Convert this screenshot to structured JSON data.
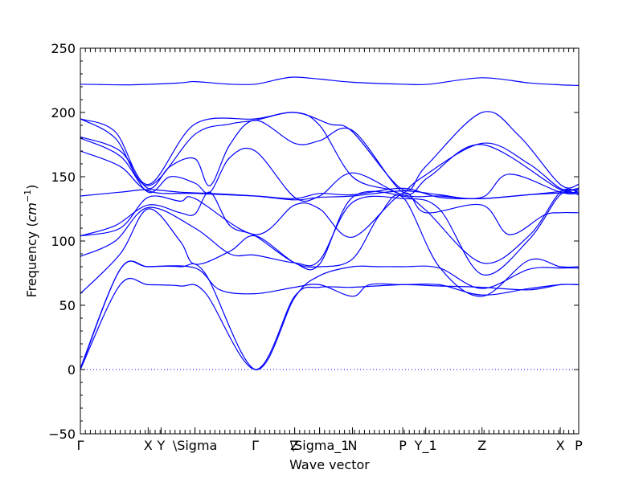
{
  "chart_data": {
    "type": "line",
    "xlabel": "Wave vector",
    "ylabel_text": "Frequency (",
    "ylabel_unit": "cm",
    "ylabel_exp": "−1",
    "ylabel_close": ")",
    "ylim": [
      -50,
      250
    ],
    "yticks": [
      -50,
      0,
      50,
      100,
      150,
      200,
      250
    ],
    "xlim": [
      0,
      100
    ],
    "grid": false,
    "zero_line": {
      "y": 0,
      "style": "dotted",
      "color": "#0000ff"
    },
    "line_color": "#0000ff",
    "kpoints": [
      {
        "label": "Γ",
        "x": 0
      },
      {
        "label": "X",
        "x": 13.6
      },
      {
        "label": "Y",
        "x": 16.2
      },
      {
        "label": "\\Sigma",
        "x": 23.0
      },
      {
        "label": "Γ",
        "x": 35.1
      },
      {
        "label": "Z",
        "x": 43.0
      },
      {
        "label": "\\Sigma_1",
        "x": 48.0
      },
      {
        "label": "N",
        "x": 54.6
      },
      {
        "label": "P",
        "x": 64.7
      },
      {
        "label": "Y_1",
        "x": 69.3
      },
      {
        "label": "Z",
        "x": 80.6
      },
      {
        "label": "X",
        "x": 96.3
      },
      {
        "label": "P",
        "x": 100
      }
    ],
    "series": [
      {
        "values": [
          [
            0,
            222
          ],
          [
            10,
            221.5
          ],
          [
            20,
            223
          ],
          [
            23,
            224
          ],
          [
            30,
            222
          ],
          [
            35.1,
            222
          ],
          [
            40,
            226
          ],
          [
            43,
            227.5
          ],
          [
            48,
            226
          ],
          [
            54.6,
            223.5
          ],
          [
            64.7,
            222
          ],
          [
            70,
            222
          ],
          [
            80.6,
            227
          ],
          [
            90,
            223
          ],
          [
            96.3,
            221.5
          ],
          [
            100,
            221
          ]
        ]
      },
      {
        "values": [
          [
            0,
            195
          ],
          [
            7,
            185
          ],
          [
            13.6,
            144
          ],
          [
            23,
            191
          ],
          [
            35.1,
            195
          ],
          [
            43,
            200
          ],
          [
            50,
            191
          ],
          [
            54.6,
            185
          ],
          [
            64.7,
            140
          ],
          [
            69.3,
            158
          ],
          [
            80.6,
            200
          ],
          [
            88,
            182
          ],
          [
            96.3,
            144
          ],
          [
            100,
            144
          ]
        ]
      },
      {
        "values": [
          [
            0,
            195
          ],
          [
            7,
            180
          ],
          [
            13.6,
            143
          ],
          [
            23,
            183
          ],
          [
            30,
            191
          ],
          [
            35.1,
            194
          ],
          [
            43,
            200
          ],
          [
            48,
            190
          ],
          [
            54.6,
            150
          ],
          [
            62,
            140
          ],
          [
            64.7,
            137
          ],
          [
            68,
            148
          ],
          [
            80.6,
            176
          ],
          [
            90,
            160
          ],
          [
            96.3,
            141
          ],
          [
            100,
            141
          ]
        ]
      },
      {
        "values": [
          [
            0,
            181
          ],
          [
            8,
            170
          ],
          [
            13.6,
            141
          ],
          [
            18,
            158
          ],
          [
            23,
            164
          ],
          [
            26,
            143
          ],
          [
            30,
            175
          ],
          [
            35.1,
            194
          ],
          [
            43,
            176
          ],
          [
            48,
            178
          ],
          [
            54.6,
            186
          ],
          [
            64.7,
            138
          ],
          [
            70,
            150
          ],
          [
            80.6,
            175
          ],
          [
            96.3,
            140
          ],
          [
            100,
            140
          ]
        ]
      },
      {
        "values": [
          [
            0,
            180
          ],
          [
            8,
            166
          ],
          [
            13.6,
            138
          ],
          [
            18,
            150
          ],
          [
            23,
            145
          ],
          [
            26,
            138
          ],
          [
            30,
            165
          ],
          [
            35.1,
            170
          ],
          [
            43,
            134
          ],
          [
            48,
            135
          ],
          [
            54.6,
            153
          ],
          [
            64.7,
            136
          ],
          [
            72,
            135
          ],
          [
            80.6,
            134
          ],
          [
            86,
            152
          ],
          [
            96.3,
            138
          ],
          [
            100,
            137
          ]
        ]
      },
      {
        "values": [
          [
            0,
            170
          ],
          [
            8,
            158
          ],
          [
            13.6,
            139
          ],
          [
            23,
            137
          ],
          [
            35.1,
            135
          ],
          [
            43,
            133
          ],
          [
            48,
            137
          ],
          [
            54.6,
            136
          ],
          [
            64.7,
            141
          ],
          [
            72,
            134
          ],
          [
            80.6,
            133
          ],
          [
            90,
            136
          ],
          [
            100,
            138
          ]
        ]
      },
      {
        "values": [
          [
            0,
            135
          ],
          [
            8,
            138
          ],
          [
            13.6,
            140
          ],
          [
            20,
            138
          ],
          [
            26,
            137
          ],
          [
            35.1,
            135
          ],
          [
            43,
            132
          ],
          [
            48,
            134
          ],
          [
            54.6,
            135
          ],
          [
            64.7,
            139
          ],
          [
            72,
            136
          ],
          [
            80.6,
            133
          ],
          [
            100,
            140
          ]
        ]
      },
      {
        "values": [
          [
            0,
            104
          ],
          [
            8,
            110
          ],
          [
            13.6,
            134
          ],
          [
            20,
            131
          ],
          [
            23,
            133
          ],
          [
            35.1,
            105
          ],
          [
            43,
            128
          ],
          [
            48,
            125
          ],
          [
            54.6,
            103
          ],
          [
            64.7,
            137
          ],
          [
            69.3,
            122
          ],
          [
            80.6,
            128
          ],
          [
            86,
            105
          ],
          [
            93,
            120
          ],
          [
            96.3,
            122
          ],
          [
            100,
            122
          ]
        ]
      },
      {
        "values": [
          [
            0,
            104
          ],
          [
            7,
            112
          ],
          [
            13.6,
            128
          ],
          [
            20,
            122
          ],
          [
            23,
            121
          ],
          [
            26,
            138
          ],
          [
            30,
            112
          ],
          [
            35.1,
            104
          ],
          [
            43,
            83
          ],
          [
            48,
            82
          ],
          [
            54.6,
            134
          ],
          [
            64.7,
            135
          ],
          [
            69.3,
            124
          ],
          [
            80.6,
            83
          ],
          [
            90,
            104
          ],
          [
            96.3,
            138
          ],
          [
            100,
            138
          ]
        ]
      },
      {
        "values": [
          [
            0,
            88
          ],
          [
            7,
            100
          ],
          [
            13.6,
            126
          ],
          [
            23,
            110
          ],
          [
            30,
            90
          ],
          [
            35.1,
            89
          ],
          [
            43,
            83
          ],
          [
            48,
            85
          ],
          [
            54.6,
            130
          ],
          [
            64.7,
            133
          ],
          [
            72,
            125
          ],
          [
            80.6,
            74
          ],
          [
            90,
            101
          ],
          [
            96.3,
            136
          ],
          [
            100,
            136
          ]
        ]
      },
      {
        "values": [
          [
            0,
            59
          ],
          [
            8,
            90
          ],
          [
            13.6,
            125
          ],
          [
            20,
            100
          ],
          [
            23,
            82
          ],
          [
            30,
            92
          ],
          [
            35.1,
            104
          ],
          [
            43,
            83
          ],
          [
            48,
            80
          ],
          [
            54.6,
            86
          ],
          [
            60,
            120
          ],
          [
            64.7,
            134
          ],
          [
            72,
            80
          ],
          [
            80.6,
            57
          ],
          [
            90,
            85
          ],
          [
            96.3,
            80
          ],
          [
            100,
            80
          ]
        ]
      },
      {
        "values": [
          [
            0,
            1
          ],
          [
            8,
            78
          ],
          [
            13.6,
            80
          ],
          [
            23,
            79
          ],
          [
            28,
            62
          ],
          [
            35.1,
            59
          ],
          [
            43,
            64
          ],
          [
            48,
            66
          ],
          [
            54.6,
            57
          ],
          [
            58,
            66
          ],
          [
            64.7,
            66
          ],
          [
            72,
            66
          ],
          [
            80.6,
            58
          ],
          [
            90,
            63
          ],
          [
            96.3,
            66
          ],
          [
            100,
            66
          ]
        ]
      },
      {
        "values": [
          [
            0,
            0
          ],
          [
            8,
            78
          ],
          [
            13.6,
            80
          ],
          [
            20,
            80
          ],
          [
            25,
            75
          ],
          [
            35.1,
            0
          ],
          [
            43,
            56
          ],
          [
            48,
            73
          ],
          [
            54.6,
            80
          ],
          [
            60,
            80
          ],
          [
            64.7,
            80
          ],
          [
            72,
            79
          ],
          [
            80.6,
            63
          ],
          [
            90,
            78
          ],
          [
            96.3,
            79
          ],
          [
            100,
            79
          ]
        ]
      },
      {
        "values": [
          [
            0,
            0
          ],
          [
            8,
            66
          ],
          [
            13.6,
            66
          ],
          [
            20,
            65
          ],
          [
            25,
            60
          ],
          [
            35.1,
            0
          ],
          [
            43,
            57
          ],
          [
            48,
            64
          ],
          [
            54.6,
            64
          ],
          [
            64.7,
            66
          ],
          [
            72,
            65
          ],
          [
            80.6,
            64
          ],
          [
            90,
            62
          ],
          [
            96.3,
            66
          ],
          [
            100,
            66
          ]
        ]
      }
    ]
  }
}
